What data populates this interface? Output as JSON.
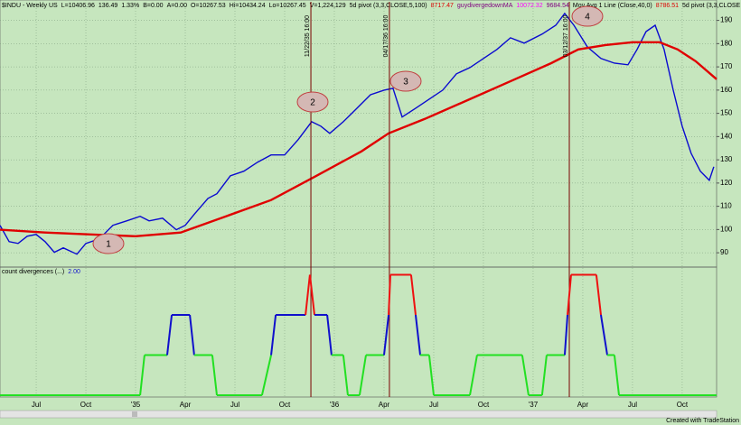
{
  "header": [
    {
      "text": "$INDU - Weekly US",
      "color": "#000000"
    },
    {
      "text": "L=10406.96",
      "color": "#000000"
    },
    {
      "text": "136.49",
      "color": "#000000"
    },
    {
      "text": "1.33%",
      "color": "#000000"
    },
    {
      "text": "B=0.00",
      "color": "#000000"
    },
    {
      "text": "A=0.00",
      "color": "#000000"
    },
    {
      "text": "O=10267.53",
      "color": "#000000"
    },
    {
      "text": "Hi=10434.24",
      "color": "#000000"
    },
    {
      "text": "Lo=10267.45",
      "color": "#000000"
    },
    {
      "text": "V=1,224,129",
      "color": "#000000"
    },
    {
      "text": "5d pivot (3,3,CLOSE,5,100)",
      "color": "#000000"
    },
    {
      "text": "8717.47",
      "color": "#dd0000"
    },
    {
      "text": "guydivergedownMA",
      "color": "#800080"
    },
    {
      "text": "10072.32",
      "color": "#ff00ff"
    },
    {
      "text": "9684.54",
      "color": "#800080"
    },
    {
      "text": "Mov Avg 1 Line (Close,40,0)",
      "color": "#000000"
    },
    {
      "text": "8786.51",
      "color": "#dd0000"
    },
    {
      "text": "5d pivot (3,3,CLOSE",
      "color": "#000000"
    }
  ],
  "chart_data": [
    {
      "type": "line",
      "xlim": [
        1934.318,
        1937.923
      ],
      "ylim": [
        85,
        198
      ],
      "yticks": [
        90,
        100,
        110,
        120,
        130,
        140,
        150,
        160,
        170,
        180,
        190
      ],
      "xticks": [
        {
          "value": 1934.5,
          "label": "Jul"
        },
        {
          "value": 1934.75,
          "label": "Oct"
        },
        {
          "value": 1935.0,
          "label": "'35"
        },
        {
          "value": 1935.25,
          "label": "Apr"
        },
        {
          "value": 1935.5,
          "label": "Jul"
        },
        {
          "value": 1935.75,
          "label": "Oct"
        },
        {
          "value": 1936.0,
          "label": "'36"
        },
        {
          "value": 1936.25,
          "label": "Apr"
        },
        {
          "value": 1936.5,
          "label": "Jul"
        },
        {
          "value": 1936.75,
          "label": "Oct"
        },
        {
          "value": 1937.0,
          "label": "'37"
        },
        {
          "value": 1937.25,
          "label": "Apr"
        },
        {
          "value": 1937.5,
          "label": "Jul"
        },
        {
          "value": 1937.75,
          "label": "Oct"
        }
      ],
      "grid": true,
      "series": [
        {
          "color": "#0a0ad0",
          "x": [
            1934.318,
            1934.364,
            1934.409,
            1934.455,
            1934.5,
            1934.545,
            1934.591,
            1934.636,
            1934.705,
            1934.75,
            1934.818,
            1934.886,
            1934.955,
            1935.023,
            1935.068,
            1935.136,
            1935.205,
            1935.25,
            1935.295,
            1935.364,
            1935.409,
            1935.477,
            1935.545,
            1935.614,
            1935.682,
            1935.75,
            1935.818,
            1935.886,
            1935.932,
            1935.977,
            1936.045,
            1936.114,
            1936.182,
            1936.25,
            1936.295,
            1936.341,
            1936.409,
            1936.477,
            1936.545,
            1936.614,
            1936.682,
            1936.75,
            1936.818,
            1936.886,
            1936.955,
            1937.045,
            1937.114,
            1937.159,
            1937.205,
            1937.273,
            1937.341,
            1937.409,
            1937.477,
            1937.523,
            1937.568,
            1937.614,
            1937.659,
            1937.705,
            1937.75,
            1937.795,
            1937.841,
            1937.886,
            1937.909
          ],
          "values": [
            101.8,
            94.8,
            94.0,
            97.1,
            97.9,
            94.8,
            90.2,
            92.1,
            89.4,
            94.0,
            96.0,
            101.8,
            103.7,
            105.7,
            103.7,
            104.9,
            99.9,
            101.8,
            106.5,
            113.4,
            115.4,
            123.1,
            125.1,
            129.0,
            132.1,
            132.1,
            138.7,
            146.4,
            144.5,
            141.4,
            146.4,
            152.2,
            158.0,
            160.0,
            160.8,
            148.4,
            152.2,
            156.1,
            160.0,
            167.0,
            169.7,
            173.6,
            177.5,
            182.5,
            180.2,
            184.1,
            187.9,
            193.0,
            187.9,
            178.6,
            173.6,
            171.6,
            170.9,
            177.5,
            185.2,
            187.9,
            177.5,
            160.0,
            144.5,
            132.8,
            125.1,
            121.2,
            127.0
          ]
        },
        {
          "color": "#e00000",
          "x": [
            1934.318,
            1934.545,
            1934.773,
            1935.0,
            1935.227,
            1935.455,
            1935.682,
            1935.909,
            1936.136,
            1936.273,
            1936.455,
            1936.682,
            1936.909,
            1937.091,
            1937.227,
            1937.364,
            1937.5,
            1937.636,
            1937.727,
            1937.818,
            1937.923
          ],
          "values": [
            99.9,
            98.7,
            97.9,
            97.1,
            98.7,
            105.7,
            112.7,
            123.1,
            133.6,
            141.4,
            147.6,
            156.1,
            164.7,
            171.6,
            177.5,
            179.4,
            180.6,
            180.6,
            177.5,
            172.4,
            164.7
          ]
        }
      ],
      "markers": [
        {
          "x": 1935.882,
          "label": "11/22/35 16:00"
        },
        {
          "x": 1936.277,
          "label": "04/17/36 16:00"
        },
        {
          "x": 1937.182,
          "label": "03/12/37 16:00"
        }
      ],
      "annotations": [
        "1",
        "2",
        "3",
        "4"
      ]
    },
    {
      "type": "step",
      "title": "count divergences (...)",
      "readout": "2.00",
      "xlim": [
        1934.318,
        1937.923
      ],
      "ylim": [
        0,
        3.1
      ],
      "level_colors": [
        "#22e022",
        "#22e022",
        "#1010cc",
        "#ee1111"
      ],
      "x": [
        1934.318,
        1935.023,
        1935.045,
        1935.159,
        1935.182,
        1935.273,
        1935.295,
        1935.386,
        1935.409,
        1935.636,
        1935.682,
        1935.705,
        1935.855,
        1935.877,
        1935.9,
        1935.964,
        1935.986,
        1936.045,
        1936.068,
        1936.127,
        1936.159,
        1936.25,
        1936.273,
        1936.282,
        1936.386,
        1936.409,
        1936.432,
        1936.477,
        1936.5,
        1936.682,
        1936.718,
        1936.945,
        1936.977,
        1937.045,
        1937.068,
        1937.159,
        1937.173,
        1937.191,
        1937.318,
        1937.341,
        1937.373,
        1937.409,
        1937.432,
        1937.923
      ],
      "values": [
        0,
        0,
        1,
        1,
        2,
        2,
        1,
        1,
        0,
        0,
        1,
        2,
        2,
        3,
        2,
        2,
        1,
        1,
        0,
        0,
        1,
        1,
        2,
        3,
        3,
        2,
        1,
        1,
        0,
        0,
        1,
        1,
        0,
        0,
        1,
        1,
        2,
        3,
        3,
        2,
        1,
        1,
        0,
        0
      ]
    }
  ],
  "footer": "Created with TradeStation"
}
